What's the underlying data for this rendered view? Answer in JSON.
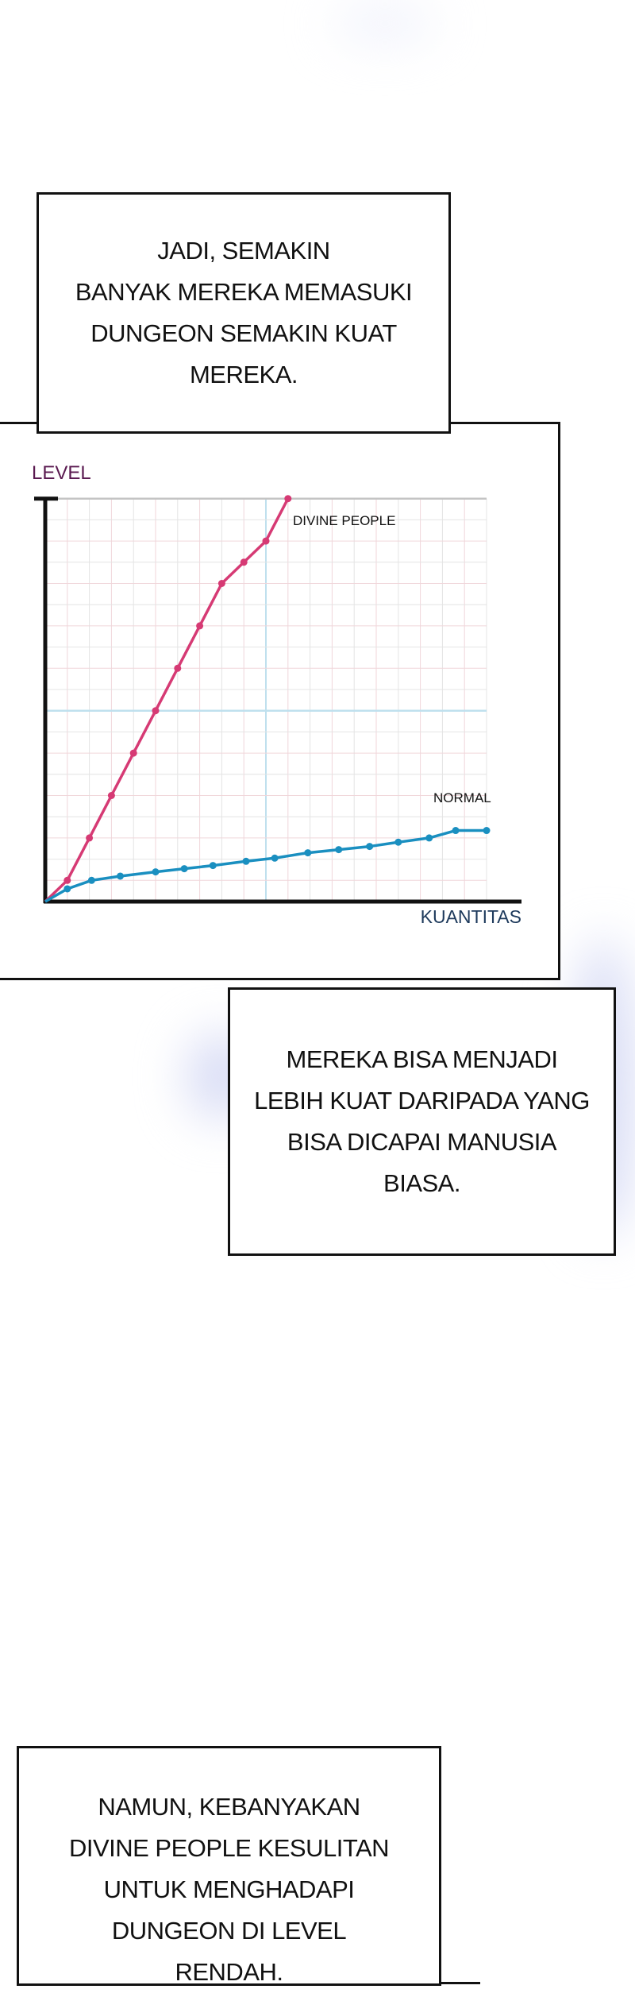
{
  "captions": [
    {
      "lines": [
        "JADI, SEMAKIN",
        "BANYAK MEREKA MEMASUKI",
        "DUNGEON SEMAKIN KUAT",
        "MEREKA."
      ]
    },
    {
      "lines": [
        "MEREKA BISA MENJADI",
        "LEBIH KUAT DARIPADA YANG",
        "BISA DICAPAI MANUSIA",
        "BIASA."
      ]
    },
    {
      "lines": [
        "NAMUN, KEBANYAKAN",
        "DIVINE PEOPLE KESULITAN",
        "UNTUK MENGHADAPI",
        "DUNGEON DI LEVEL",
        "RENDAH."
      ]
    }
  ],
  "chart_data": {
    "type": "line",
    "xlabel": "KUANTITAS",
    "ylabel": "LEVEL",
    "xlim": [
      0,
      20
    ],
    "ylim": [
      0,
      19
    ],
    "grid": true,
    "series": [
      {
        "name": "DIVINE PEOPLE",
        "color": "#d63a74",
        "x": [
          0,
          1,
          2,
          3,
          4,
          5,
          6,
          7,
          8,
          9,
          10,
          11
        ],
        "y": [
          0,
          1,
          3,
          5,
          7,
          9,
          11,
          13,
          15,
          16,
          17,
          19
        ]
      },
      {
        "name": "NORMAL",
        "color": "#1a8fc0",
        "x": [
          0,
          1,
          2.1,
          3.4,
          5,
          6.3,
          7.6,
          9.1,
          10.4,
          11.9,
          13.3,
          14.7,
          16,
          17.4,
          18.6,
          20
        ],
        "y": [
          0,
          0.6,
          1,
          1.2,
          1.4,
          1.55,
          1.7,
          1.9,
          2.05,
          2.3,
          2.45,
          2.6,
          2.8,
          3,
          3.35,
          3.35
        ]
      }
    ],
    "colors": {
      "ylabel": "#5a1a50",
      "xlabel": "#1e3a5c",
      "grid": "#f0d6da",
      "grid_major": "#bfe0ee"
    }
  }
}
